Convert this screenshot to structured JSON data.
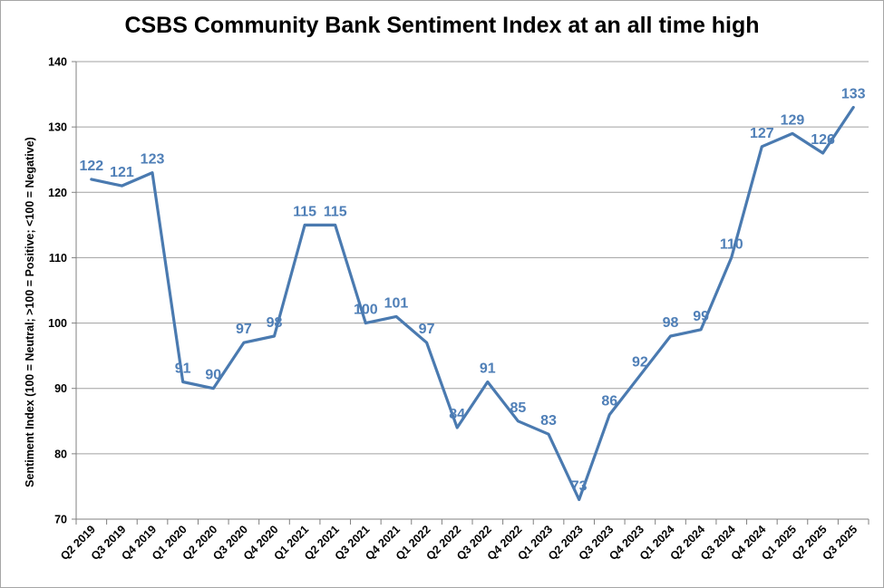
{
  "chart_data": {
    "type": "line",
    "title": "CSBS Community Bank Sentiment Index at an all time high",
    "xlabel": "",
    "ylabel": "Sentiment Index (100 = Neutral; >100 = Positive; <100 = Negative)",
    "ylim": [
      70,
      140
    ],
    "yticks": [
      70,
      80,
      90,
      100,
      110,
      120,
      130,
      140
    ],
    "grid": true,
    "categories": [
      "Q2 2019",
      "Q3 2019",
      "Q4 2019",
      "Q1 2020",
      "Q2 2020",
      "Q3 2020",
      "Q4 2020",
      "Q1 2021",
      "Q2 2021",
      "Q3 2021",
      "Q4 2021",
      "Q1 2022",
      "Q2 2022",
      "Q3 2022",
      "Q4 2022",
      "Q1 2023",
      "Q2 2023",
      "Q3 2023",
      "Q4 2023",
      "Q1 2024",
      "Q2 2024",
      "Q3 2024",
      "Q4 2024",
      "Q1 2025",
      "Q2 2025",
      "Q3 2025"
    ],
    "values": [
      122,
      121,
      123,
      91,
      90,
      97,
      98,
      115,
      115,
      100,
      101,
      97,
      84,
      91,
      85,
      83,
      73,
      86,
      92,
      98,
      99,
      110,
      127,
      129,
      126,
      133
    ],
    "line_color": "#4a7ab0",
    "label_color": "#4f7fb7"
  }
}
